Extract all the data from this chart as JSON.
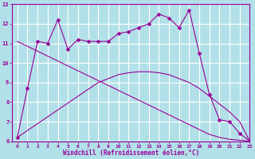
{
  "xlabel": "Windchill (Refroidissement éolien,°C)",
  "background_color": "#b2e0e8",
  "line_color": "#990099",
  "grid_color": "#ffffff",
  "x_data": [
    0,
    1,
    2,
    3,
    4,
    5,
    6,
    7,
    8,
    9,
    10,
    11,
    12,
    13,
    14,
    15,
    16,
    17,
    18,
    19,
    20,
    21,
    22,
    23
  ],
  "y_curve": [
    6.2,
    8.7,
    11.1,
    11.0,
    12.2,
    10.7,
    11.2,
    11.1,
    11.1,
    11.1,
    11.5,
    11.6,
    11.8,
    12.0,
    12.5,
    12.3,
    11.8,
    12.7,
    10.5,
    8.4,
    7.1,
    7.0,
    6.4,
    6.0
  ],
  "y_trend1": [
    11.1,
    10.85,
    10.6,
    10.35,
    10.1,
    9.85,
    9.6,
    9.35,
    9.1,
    8.85,
    8.6,
    8.35,
    8.1,
    7.85,
    7.6,
    7.35,
    7.1,
    6.85,
    6.6,
    6.35,
    6.2,
    6.1,
    6.05,
    6.0
  ],
  "y_trend2": [
    6.2,
    6.55,
    6.9,
    7.25,
    7.6,
    7.95,
    8.3,
    8.65,
    9.0,
    9.2,
    9.4,
    9.5,
    9.55,
    9.55,
    9.5,
    9.4,
    9.2,
    9.0,
    8.7,
    8.3,
    7.9,
    7.5,
    7.0,
    6.0
  ],
  "ylim": [
    6,
    13
  ],
  "xlim": [
    -0.5,
    23
  ],
  "yticks": [
    6,
    7,
    8,
    9,
    10,
    11,
    12,
    13
  ],
  "xticks": [
    0,
    1,
    2,
    3,
    4,
    5,
    6,
    7,
    8,
    9,
    10,
    11,
    12,
    13,
    14,
    15,
    16,
    17,
    18,
    19,
    20,
    21,
    22,
    23
  ]
}
